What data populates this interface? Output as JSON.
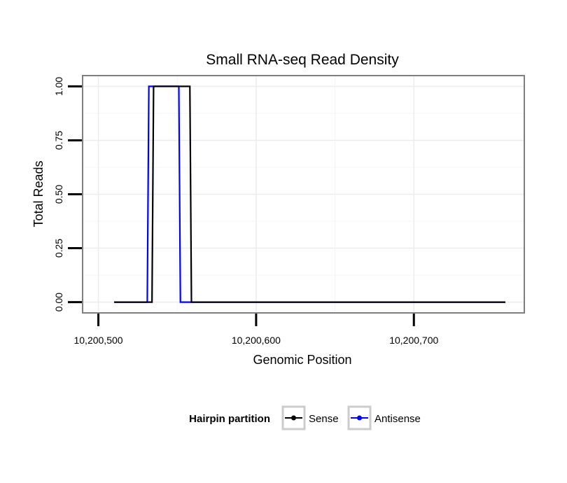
{
  "chart_data": {
    "type": "line",
    "title": "Small RNA-seq Read Density",
    "xlabel": "Genomic Position",
    "ylabel": "Total Reads",
    "xlim": [
      10200490,
      10200770
    ],
    "ylim": [
      -0.05,
      1.05
    ],
    "x_ticks": [
      10200500,
      10200600,
      10200700
    ],
    "x_tick_labels": [
      "10,200,500",
      "10,200,600",
      "10,200,700"
    ],
    "y_ticks": [
      0,
      0.25,
      0.5,
      0.75,
      1
    ],
    "y_tick_labels": [
      "0.00",
      "0.25",
      "0.50",
      "0.75",
      "1.00"
    ],
    "grid": true,
    "legend": {
      "title": "Hairpin partition",
      "position": "bottom",
      "entries": [
        "Sense",
        "Antisense"
      ]
    },
    "series": [
      {
        "name": "Sense",
        "color": "#000000",
        "x": [
          10200510,
          10200534,
          10200535,
          10200558,
          10200559,
          10200758
        ],
        "y": [
          0,
          0,
          1,
          1,
          0,
          0
        ]
      },
      {
        "name": "Antisense",
        "color": "#0000ff",
        "x": [
          10200510,
          10200531,
          10200532,
          10200551,
          10200552,
          10200758
        ],
        "y": [
          0,
          0,
          1,
          1,
          0,
          0
        ]
      }
    ]
  }
}
